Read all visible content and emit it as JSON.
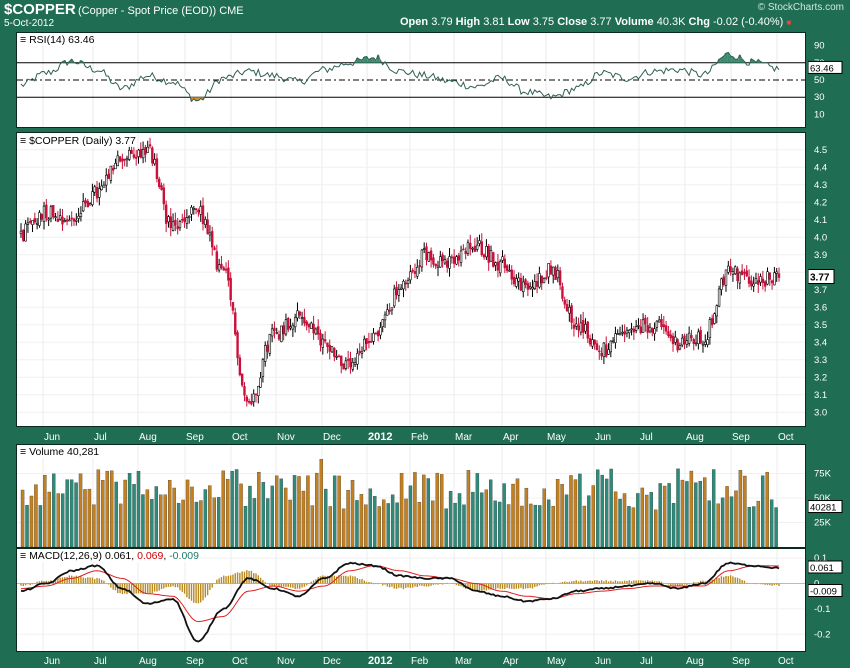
{
  "header": {
    "symbol": "$COPPER",
    "fullname": "(Copper - Spot Price (EOD)) CME",
    "date": "5-Oct-2012",
    "open_label": "Open",
    "open": "3.79",
    "high_label": "High",
    "high": "3.81",
    "low_label": "Low",
    "low": "3.75",
    "close_label": "Close",
    "close": "3.77",
    "volume_label": "Volume",
    "volume": "40.3K",
    "chg_label": "Chg",
    "chg": "-0.02 (-0.40%)",
    "brand": "© StockCharts.com"
  },
  "colors": {
    "background": "#1f6d52",
    "up": "#000000",
    "down": "#c8103a",
    "volume_up": "#2e8b7a",
    "volume_down": "#c28020",
    "rsi_line": "#2f5f56",
    "rsi_overbought_fill": "#3f8a6e",
    "rsi_oversold_fill": "#d98a20",
    "macd_line": "#111111",
    "signal_line": "#e02020",
    "histogram": "#b88a20"
  },
  "rsi": {
    "title": "RSI(14) 63.46",
    "value_label": "63.46"
  },
  "price": {
    "title": "$COPPER (Daily) 3.77",
    "last_label": "3.77"
  },
  "volume": {
    "title": "Volume 40,281",
    "last_label": "40281"
  },
  "macd": {
    "title_prefix": "MACD(12,26,9)",
    "macd": "0.061",
    "signal": "0.069",
    "hist": "-0.009",
    "macd_label": "0.061",
    "hist_label": "-0.009"
  },
  "chart_data": [
    {
      "type": "line",
      "name": "rsi",
      "ylim": [
        0,
        100
      ],
      "yticks": [
        10,
        30,
        50,
        70,
        90
      ],
      "reference_lines": [
        30,
        50,
        70
      ],
      "x": [
        "Jun",
        "Jul",
        "Aug",
        "Sep",
        "Oct",
        "Nov",
        "Dec",
        "2012",
        "Feb",
        "Mar",
        "Apr",
        "May",
        "Jun",
        "Jul",
        "Aug",
        "Sep",
        "Oct"
      ],
      "knots": [
        44,
        58,
        72,
        62,
        40,
        55,
        48,
        26,
        52,
        60,
        55,
        48,
        62,
        70,
        76,
        60,
        55,
        48,
        42,
        52,
        36,
        30,
        40,
        58,
        52,
        60,
        62,
        56,
        80,
        70,
        63
      ]
    },
    {
      "type": "candlestick",
      "name": "price",
      "ylim": [
        2.95,
        4.55
      ],
      "yticks": [
        3.0,
        3.1,
        3.2,
        3.3,
        3.4,
        3.5,
        3.6,
        3.7,
        3.8,
        3.9,
        4.0,
        4.1,
        4.2,
        4.3,
        4.4,
        4.5
      ],
      "x": [
        "Jun",
        "Jul",
        "Aug",
        "Sep",
        "Oct",
        "Nov",
        "Dec",
        "2012",
        "Feb",
        "Mar",
        "Apr",
        "May",
        "Jun",
        "Jul",
        "Aug",
        "Sep",
        "Oct"
      ],
      "knots": [
        4.02,
        4.15,
        4.1,
        4.25,
        4.45,
        4.5,
        4.05,
        4.15,
        3.8,
        3.05,
        3.45,
        3.55,
        3.4,
        3.25,
        3.45,
        3.7,
        3.9,
        3.85,
        3.95,
        3.85,
        3.7,
        3.82,
        3.5,
        3.35,
        3.45,
        3.5,
        3.4,
        3.42,
        3.8,
        3.75,
        3.77
      ],
      "last": 3.77
    },
    {
      "type": "bar",
      "name": "volume",
      "ylim": [
        0,
        100000
      ],
      "yticks": [
        25000,
        50000,
        75000
      ],
      "ytick_labels": [
        "25K",
        "50K",
        "75K"
      ],
      "x": [
        "Jun",
        "Jul",
        "Aug",
        "Sep",
        "Oct",
        "Nov",
        "Dec",
        "2012",
        "Feb",
        "Mar",
        "Apr",
        "May",
        "Jun",
        "Jul",
        "Aug",
        "Sep",
        "Oct"
      ],
      "typical_range": [
        38000,
        80000
      ],
      "last": 40281
    },
    {
      "type": "line",
      "name": "macd",
      "ylim": [
        -0.25,
        0.12
      ],
      "yticks": [
        -0.2,
        -0.1,
        0.0,
        0.1
      ],
      "ytick_labels": [
        "-0.2",
        "-0.1",
        "0",
        "0.1"
      ],
      "x": [
        "Jun",
        "Jul",
        "Aug",
        "Sep",
        "Oct",
        "Nov",
        "Dec",
        "2012",
        "Feb",
        "Mar",
        "Apr",
        "May",
        "Jun",
        "Jul",
        "Aug",
        "Sep",
        "Oct"
      ],
      "macd_knots": [
        -0.03,
        0.0,
        0.05,
        0.07,
        -0.02,
        -0.08,
        -0.06,
        -0.23,
        -0.1,
        0.02,
        -0.02,
        -0.05,
        0.02,
        0.08,
        0.07,
        0.03,
        0.02,
        0.02,
        -0.03,
        -0.05,
        -0.07,
        -0.06,
        -0.03,
        -0.02,
        -0.01,
        0.0,
        -0.02,
        0.0,
        0.08,
        0.07,
        0.061
      ],
      "signal_knots": [
        -0.02,
        -0.01,
        0.02,
        0.05,
        0.02,
        -0.04,
        -0.05,
        -0.15,
        -0.13,
        -0.03,
        -0.01,
        -0.03,
        -0.01,
        0.05,
        0.07,
        0.05,
        0.03,
        0.02,
        0.0,
        -0.03,
        -0.05,
        -0.06,
        -0.04,
        -0.03,
        -0.02,
        -0.01,
        -0.01,
        -0.01,
        0.05,
        0.07,
        0.069
      ],
      "last_macd": 0.061,
      "last_signal": 0.069,
      "last_hist": -0.009
    }
  ],
  "x_axis": {
    "labels": [
      "Jun",
      "Jul",
      "Aug",
      "Sep",
      "Oct",
      "Nov",
      "Dec",
      "2012",
      "Feb",
      "Mar",
      "Apr",
      "May",
      "Jun",
      "Jul",
      "Aug",
      "Sep",
      "Oct"
    ]
  }
}
